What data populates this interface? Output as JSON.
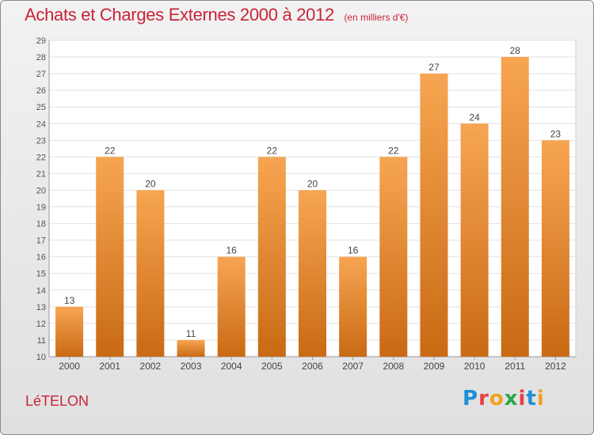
{
  "title": "Achats et Charges Externes 2000 à 2012",
  "unit": "(en milliers d'€)",
  "commune": "LéTELON",
  "logo": {
    "letters": [
      "P",
      "r",
      "o",
      "x",
      "i",
      "t",
      "i"
    ],
    "colors": [
      "#1e8fd6",
      "#e84040",
      "#f0a020",
      "#2aa84a",
      "#e84040",
      "#1e8fd6",
      "#f0a020"
    ]
  },
  "chart_data": {
    "type": "bar",
    "title": "Achats et Charges Externes 2000 à 2012",
    "subtitle": "(en milliers d'€)",
    "xlabel": "",
    "ylabel": "",
    "categories": [
      "2000",
      "2001",
      "2002",
      "2003",
      "2004",
      "2005",
      "2006",
      "2007",
      "2008",
      "2009",
      "2010",
      "2011",
      "2012"
    ],
    "values": [
      13,
      22,
      20,
      11,
      16,
      22,
      20,
      16,
      22,
      27,
      24,
      28,
      23
    ],
    "ylim": [
      10,
      29
    ],
    "yticks": [
      10,
      11,
      12,
      13,
      14,
      15,
      16,
      17,
      18,
      19,
      20,
      21,
      22,
      23,
      24,
      25,
      26,
      27,
      28,
      29
    ],
    "grid": true,
    "legend": "none",
    "bar_color_top": "#f7a552",
    "bar_color_bottom": "#c96a14"
  }
}
